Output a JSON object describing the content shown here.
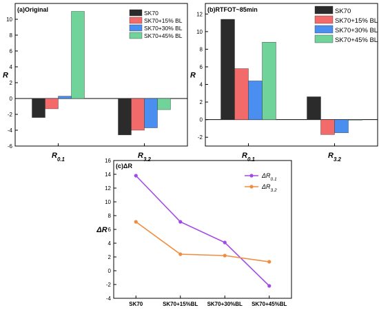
{
  "colors": {
    "SK70": "#2b2b2b",
    "SK70+15% BL": "#f26a6a",
    "SK70+30% BL": "#4a8ff0",
    "SK70+45% BL": "#6fd39a",
    "dR01": "#a24ae8",
    "dR32": "#f28c3c"
  },
  "chart_data": [
    {
      "id": "a",
      "type": "bar",
      "title": "(a)Original",
      "ylabel": "R",
      "xlabel": "",
      "categories": [
        "R0.1",
        "R3.2"
      ],
      "category_labels": [
        {
          "main": "R",
          "sub": "0.1"
        },
        {
          "main": "R",
          "sub": "3.2"
        }
      ],
      "ylim": [
        -6,
        12
      ],
      "yticks": [
        -6,
        -4,
        -2,
        0,
        2,
        4,
        6,
        8,
        10
      ],
      "legend_position": "top-right",
      "series": [
        {
          "name": "SK70",
          "values": [
            -2.4,
            -4.6
          ]
        },
        {
          "name": "SK70+15% BL",
          "values": [
            -1.3,
            -4.0
          ]
        },
        {
          "name": "SK70+30% BL",
          "values": [
            0.3,
            -3.7
          ]
        },
        {
          "name": "SK70+45% BL",
          "values": [
            11.0,
            -1.4
          ]
        }
      ]
    },
    {
      "id": "b",
      "type": "bar",
      "title": "(b)RTFOT~85min",
      "ylabel": "R",
      "xlabel": "",
      "categories": [
        "R0.1",
        "R3.2"
      ],
      "category_labels": [
        {
          "main": "R",
          "sub": "0.1"
        },
        {
          "main": "R",
          "sub": "3.2"
        }
      ],
      "ylim": [
        -3,
        13.2
      ],
      "yticks": [
        -2,
        0,
        2,
        4,
        6,
        8,
        10,
        12
      ],
      "legend_position": "top-right",
      "series": [
        {
          "name": "SK70",
          "values": [
            11.4,
            2.6
          ]
        },
        {
          "name": "SK70+15% BL",
          "values": [
            5.8,
            -1.7
          ]
        },
        {
          "name": "SK70+30% BL",
          "values": [
            4.4,
            -1.5
          ]
        },
        {
          "name": "SK70+45% BL",
          "values": [
            8.8,
            0.0
          ]
        }
      ]
    },
    {
      "id": "c",
      "type": "line",
      "title": "(c)ΔR",
      "ylabel": "ΔR",
      "xlabel": "",
      "categories": [
        "SK70",
        "SK70+15%BL",
        "SK70+30%BL",
        "SK70+45%BL"
      ],
      "ylim": [
        -4,
        16
      ],
      "yticks": [
        -4,
        -2,
        0,
        2,
        4,
        6,
        8,
        10,
        12,
        14,
        16
      ],
      "legend_position": "top-right",
      "series": [
        {
          "name": "ΔR0.1",
          "label_main": "ΔR",
          "label_sub": "0.1",
          "values": [
            13.8,
            7.1,
            4.1,
            -2.2
          ]
        },
        {
          "name": "ΔR3.2",
          "label_main": "ΔR",
          "label_sub": "3.2",
          "values": [
            7.1,
            2.4,
            2.2,
            1.3
          ]
        }
      ]
    }
  ]
}
